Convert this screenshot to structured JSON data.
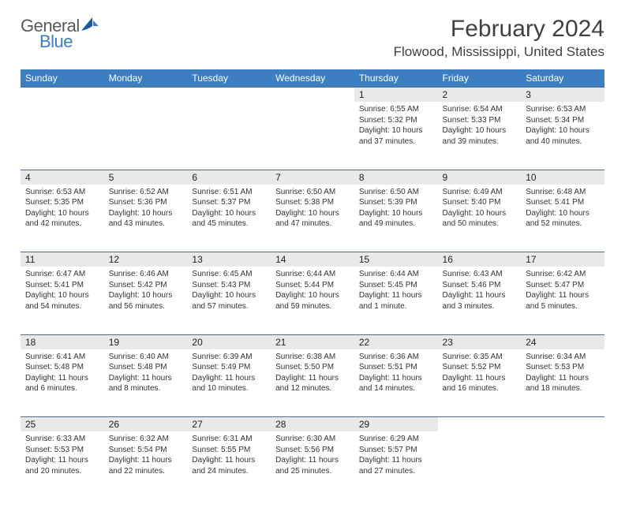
{
  "logo": {
    "general": "General",
    "blue": "Blue"
  },
  "header": {
    "title": "February 2024",
    "location": "Flowood, Mississippi, United States"
  },
  "colors": {
    "header_bg": "#3c7ebf",
    "daynum_bg": "#e9e9e9",
    "row_border": "#4a6c8c",
    "text": "#333333",
    "logo_gray": "#58595b",
    "logo_blue": "#3c7ebf"
  },
  "columns": [
    "Sunday",
    "Monday",
    "Tuesday",
    "Wednesday",
    "Thursday",
    "Friday",
    "Saturday"
  ],
  "weeks": [
    [
      {
        "empty": true
      },
      {
        "empty": true
      },
      {
        "empty": true
      },
      {
        "empty": true
      },
      {
        "day": "1",
        "sunrise": "Sunrise: 6:55 AM",
        "sunset": "Sunset: 5:32 PM",
        "daylight1": "Daylight: 10 hours",
        "daylight2": "and 37 minutes."
      },
      {
        "day": "2",
        "sunrise": "Sunrise: 6:54 AM",
        "sunset": "Sunset: 5:33 PM",
        "daylight1": "Daylight: 10 hours",
        "daylight2": "and 39 minutes."
      },
      {
        "day": "3",
        "sunrise": "Sunrise: 6:53 AM",
        "sunset": "Sunset: 5:34 PM",
        "daylight1": "Daylight: 10 hours",
        "daylight2": "and 40 minutes."
      }
    ],
    [
      {
        "day": "4",
        "sunrise": "Sunrise: 6:53 AM",
        "sunset": "Sunset: 5:35 PM",
        "daylight1": "Daylight: 10 hours",
        "daylight2": "and 42 minutes."
      },
      {
        "day": "5",
        "sunrise": "Sunrise: 6:52 AM",
        "sunset": "Sunset: 5:36 PM",
        "daylight1": "Daylight: 10 hours",
        "daylight2": "and 43 minutes."
      },
      {
        "day": "6",
        "sunrise": "Sunrise: 6:51 AM",
        "sunset": "Sunset: 5:37 PM",
        "daylight1": "Daylight: 10 hours",
        "daylight2": "and 45 minutes."
      },
      {
        "day": "7",
        "sunrise": "Sunrise: 6:50 AM",
        "sunset": "Sunset: 5:38 PM",
        "daylight1": "Daylight: 10 hours",
        "daylight2": "and 47 minutes."
      },
      {
        "day": "8",
        "sunrise": "Sunrise: 6:50 AM",
        "sunset": "Sunset: 5:39 PM",
        "daylight1": "Daylight: 10 hours",
        "daylight2": "and 49 minutes."
      },
      {
        "day": "9",
        "sunrise": "Sunrise: 6:49 AM",
        "sunset": "Sunset: 5:40 PM",
        "daylight1": "Daylight: 10 hours",
        "daylight2": "and 50 minutes."
      },
      {
        "day": "10",
        "sunrise": "Sunrise: 6:48 AM",
        "sunset": "Sunset: 5:41 PM",
        "daylight1": "Daylight: 10 hours",
        "daylight2": "and 52 minutes."
      }
    ],
    [
      {
        "day": "11",
        "sunrise": "Sunrise: 6:47 AM",
        "sunset": "Sunset: 5:41 PM",
        "daylight1": "Daylight: 10 hours",
        "daylight2": "and 54 minutes."
      },
      {
        "day": "12",
        "sunrise": "Sunrise: 6:46 AM",
        "sunset": "Sunset: 5:42 PM",
        "daylight1": "Daylight: 10 hours",
        "daylight2": "and 56 minutes."
      },
      {
        "day": "13",
        "sunrise": "Sunrise: 6:45 AM",
        "sunset": "Sunset: 5:43 PM",
        "daylight1": "Daylight: 10 hours",
        "daylight2": "and 57 minutes."
      },
      {
        "day": "14",
        "sunrise": "Sunrise: 6:44 AM",
        "sunset": "Sunset: 5:44 PM",
        "daylight1": "Daylight: 10 hours",
        "daylight2": "and 59 minutes."
      },
      {
        "day": "15",
        "sunrise": "Sunrise: 6:44 AM",
        "sunset": "Sunset: 5:45 PM",
        "daylight1": "Daylight: 11 hours",
        "daylight2": "and 1 minute."
      },
      {
        "day": "16",
        "sunrise": "Sunrise: 6:43 AM",
        "sunset": "Sunset: 5:46 PM",
        "daylight1": "Daylight: 11 hours",
        "daylight2": "and 3 minutes."
      },
      {
        "day": "17",
        "sunrise": "Sunrise: 6:42 AM",
        "sunset": "Sunset: 5:47 PM",
        "daylight1": "Daylight: 11 hours",
        "daylight2": "and 5 minutes."
      }
    ],
    [
      {
        "day": "18",
        "sunrise": "Sunrise: 6:41 AM",
        "sunset": "Sunset: 5:48 PM",
        "daylight1": "Daylight: 11 hours",
        "daylight2": "and 6 minutes."
      },
      {
        "day": "19",
        "sunrise": "Sunrise: 6:40 AM",
        "sunset": "Sunset: 5:48 PM",
        "daylight1": "Daylight: 11 hours",
        "daylight2": "and 8 minutes."
      },
      {
        "day": "20",
        "sunrise": "Sunrise: 6:39 AM",
        "sunset": "Sunset: 5:49 PM",
        "daylight1": "Daylight: 11 hours",
        "daylight2": "and 10 minutes."
      },
      {
        "day": "21",
        "sunrise": "Sunrise: 6:38 AM",
        "sunset": "Sunset: 5:50 PM",
        "daylight1": "Daylight: 11 hours",
        "daylight2": "and 12 minutes."
      },
      {
        "day": "22",
        "sunrise": "Sunrise: 6:36 AM",
        "sunset": "Sunset: 5:51 PM",
        "daylight1": "Daylight: 11 hours",
        "daylight2": "and 14 minutes."
      },
      {
        "day": "23",
        "sunrise": "Sunrise: 6:35 AM",
        "sunset": "Sunset: 5:52 PM",
        "daylight1": "Daylight: 11 hours",
        "daylight2": "and 16 minutes."
      },
      {
        "day": "24",
        "sunrise": "Sunrise: 6:34 AM",
        "sunset": "Sunset: 5:53 PM",
        "daylight1": "Daylight: 11 hours",
        "daylight2": "and 18 minutes."
      }
    ],
    [
      {
        "day": "25",
        "sunrise": "Sunrise: 6:33 AM",
        "sunset": "Sunset: 5:53 PM",
        "daylight1": "Daylight: 11 hours",
        "daylight2": "and 20 minutes."
      },
      {
        "day": "26",
        "sunrise": "Sunrise: 6:32 AM",
        "sunset": "Sunset: 5:54 PM",
        "daylight1": "Daylight: 11 hours",
        "daylight2": "and 22 minutes."
      },
      {
        "day": "27",
        "sunrise": "Sunrise: 6:31 AM",
        "sunset": "Sunset: 5:55 PM",
        "daylight1": "Daylight: 11 hours",
        "daylight2": "and 24 minutes."
      },
      {
        "day": "28",
        "sunrise": "Sunrise: 6:30 AM",
        "sunset": "Sunset: 5:56 PM",
        "daylight1": "Daylight: 11 hours",
        "daylight2": "and 25 minutes."
      },
      {
        "day": "29",
        "sunrise": "Sunrise: 6:29 AM",
        "sunset": "Sunset: 5:57 PM",
        "daylight1": "Daylight: 11 hours",
        "daylight2": "and 27 minutes."
      },
      {
        "empty": true
      },
      {
        "empty": true
      }
    ]
  ]
}
